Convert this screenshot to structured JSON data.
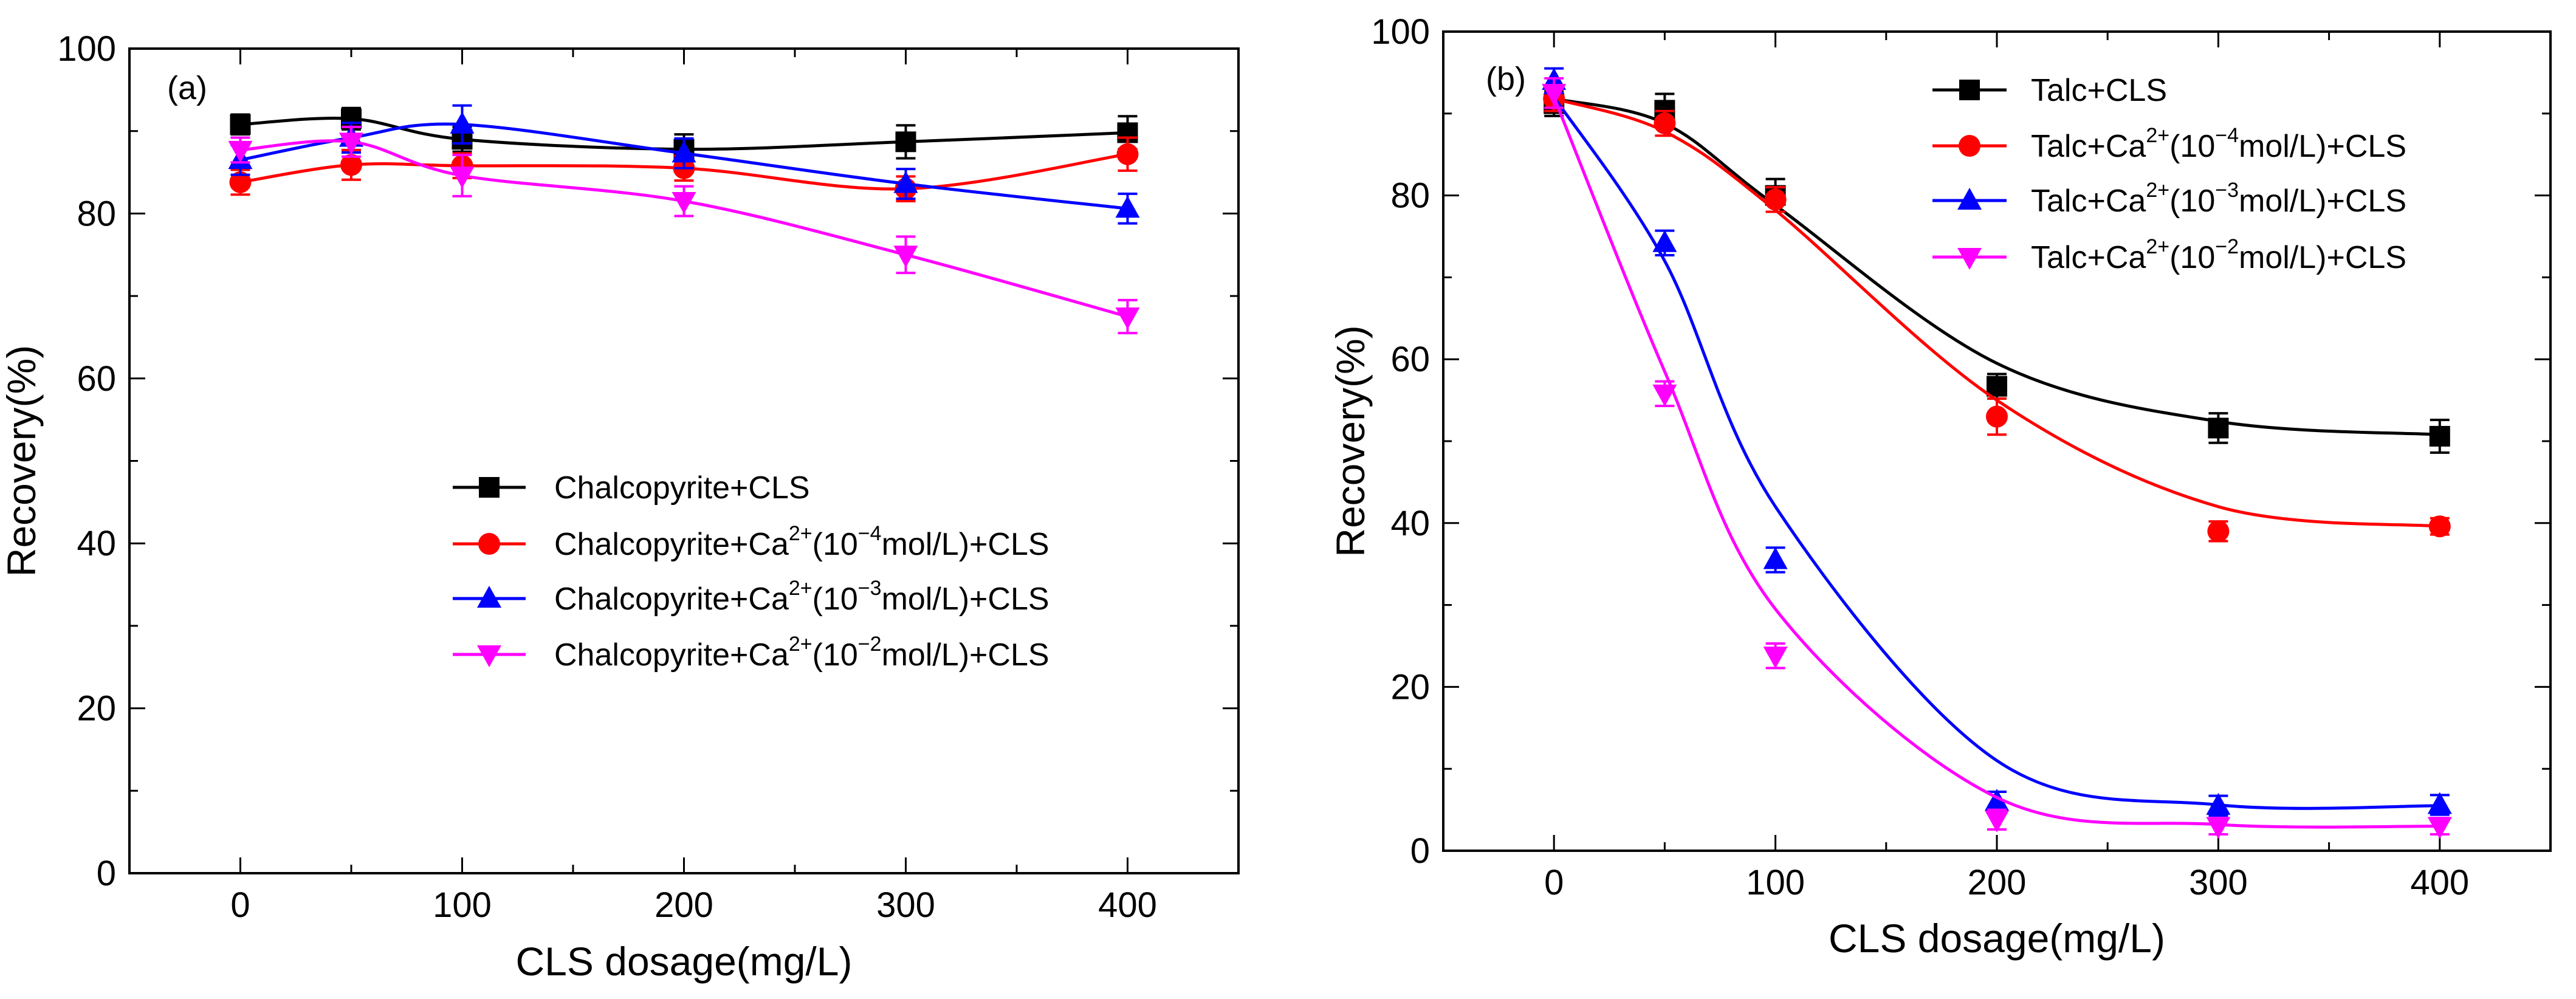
{
  "chart_data": [
    {
      "type": "line",
      "panel_label": "(a)",
      "xlabel": "CLS dosage(mg/L)",
      "ylabel": "Recovery(%)",
      "xlim": [
        -50,
        450
      ],
      "ylim": [
        0,
        100
      ],
      "xticks": [
        "0",
        "100",
        "200",
        "300",
        "400"
      ],
      "yticks": [
        "0",
        "20",
        "40",
        "60",
        "80",
        "100"
      ],
      "legend_position": "center",
      "x": [
        0,
        50,
        100,
        200,
        300,
        400
      ],
      "series": [
        {
          "name": "Chalcopyrite+CLS",
          "label_main": "Chalcopyrite+CLS",
          "color": "#000000",
          "marker": "square",
          "values": [
            90.8,
            91.5,
            89.0,
            87.8,
            88.7,
            89.8
          ],
          "errors": [
            1.2,
            1.3,
            1.5,
            1.8,
            2.0,
            2.0
          ]
        },
        {
          "name": "Chalcopyrite+Ca2+(10-4mol/L)+CLS",
          "label_pre": "Chalcopyrite+Ca",
          "label_ion": "2+",
          "label_mid": "(10",
          "label_exp": "−4",
          "label_post": "mol/L)+CLS",
          "color": "#ff0000",
          "marker": "circle",
          "values": [
            83.8,
            85.9,
            85.8,
            85.5,
            83.0,
            87.2
          ],
          "errors": [
            1.5,
            1.8,
            1.5,
            1.5,
            1.5,
            2.0
          ]
        },
        {
          "name": "Chalcopyrite+Ca2+(10-3mol/L)+CLS",
          "label_pre": "Chalcopyrite+Ca",
          "label_ion": "2+",
          "label_mid": "(10",
          "label_exp": "−3",
          "label_post": "mol/L)+CLS",
          "color": "#0000ff",
          "marker": "triangle-up",
          "values": [
            86.5,
            89.2,
            90.8,
            87.3,
            83.6,
            80.6
          ],
          "errors": [
            1.8,
            1.8,
            2.3,
            1.8,
            1.8,
            1.8
          ]
        },
        {
          "name": "Chalcopyrite+Ca2+(10-2mol/L)+CLS",
          "label_pre": "Chalcopyrite+Ca",
          "label_ion": "2+",
          "label_mid": "(10",
          "label_exp": "−2",
          "label_post": "mol/L)+CLS",
          "color": "#ff00ff",
          "marker": "triangle-down",
          "values": [
            87.7,
            88.7,
            84.6,
            81.5,
            75.0,
            67.5
          ],
          "errors": [
            1.5,
            1.8,
            2.5,
            1.8,
            2.2,
            2.0
          ]
        }
      ]
    },
    {
      "type": "line",
      "panel_label": "(b)",
      "xlabel": "CLS dosage(mg/L)",
      "ylabel": "Recovery(%)",
      "xlim": [
        -50,
        450
      ],
      "ylim": [
        0,
        100
      ],
      "xticks": [
        "0",
        "100",
        "200",
        "300",
        "400"
      ],
      "yticks": [
        "0",
        "20",
        "40",
        "60",
        "80",
        "100"
      ],
      "legend_position": "top-right",
      "x": [
        0,
        50,
        100,
        200,
        300,
        400
      ],
      "series": [
        {
          "name": "Talc+CLS",
          "label_main": "Talc+CLS",
          "color": "#000000",
          "marker": "square",
          "values": [
            91.2,
            90.4,
            80.0,
            56.7,
            51.6,
            50.6
          ],
          "errors": [
            1.5,
            2.0,
            2.0,
            1.5,
            1.8,
            2.0
          ],
          "fit": [
            91.8,
            88.8,
            78.8,
            59.5,
            52.4,
            50.8
          ]
        },
        {
          "name": "Talc+Ca2+(10-4mol/L)+CLS",
          "label_pre": "Talc+Ca",
          "label_ion": "2+",
          "label_mid": "(10",
          "label_exp": "−4",
          "label_post": "mol/L)+CLS",
          "color": "#ff0000",
          "marker": "circle",
          "values": [
            91.8,
            88.8,
            79.5,
            53.0,
            39.0,
            39.6
          ],
          "errors": [
            1.5,
            1.5,
            1.5,
            2.2,
            1.2,
            1.0
          ],
          "fit": [
            91.8,
            87.8,
            78.2,
            55.0,
            42.0,
            39.6
          ]
        },
        {
          "name": "Talc+Ca2+(10-3mol/L)+CLS",
          "label_pre": "Talc+Ca",
          "label_ion": "2+",
          "label_mid": "(10",
          "label_exp": "−3",
          "label_post": "mol/L)+CLS",
          "color": "#0000ff",
          "marker": "triangle-up",
          "values": [
            94.0,
            74.2,
            35.5,
            6.0,
            5.5,
            5.6
          ],
          "errors": [
            1.5,
            1.5,
            1.5,
            1.2,
            1.2,
            1.2
          ],
          "fit": [
            92.0,
            72.0,
            42.0,
            11.0,
            5.6,
            5.5
          ]
        },
        {
          "name": "Talc+Ca2+(10-2mol/L)+CLS",
          "label_pre": "Talc+Ca",
          "label_ion": "2+",
          "label_mid": "(10",
          "label_exp": "−2",
          "label_post": "mol/L)+CLS",
          "color": "#ff00ff",
          "marker": "triangle-down",
          "values": [
            92.5,
            55.8,
            23.8,
            3.8,
            3.0,
            3.0
          ],
          "errors": [
            1.8,
            1.5,
            1.5,
            1.2,
            1.0,
            1.0
          ],
          "fit": [
            92.0,
            58.5,
            29.5,
            6.5,
            3.2,
            3.0
          ]
        }
      ]
    }
  ]
}
